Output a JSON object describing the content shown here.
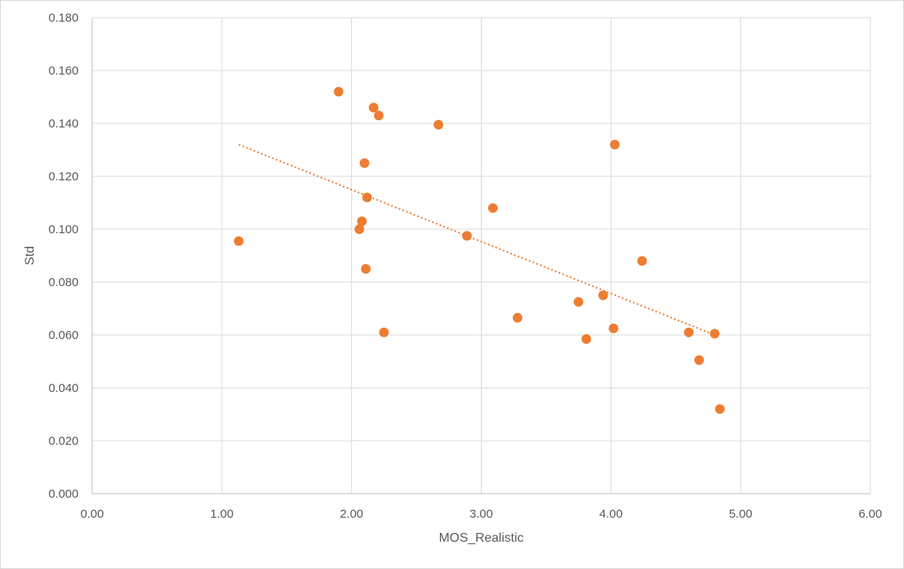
{
  "chart_data": {
    "type": "scatter",
    "xlabel": "MOS_Realistic",
    "ylabel": "Std",
    "xlim": [
      0,
      6
    ],
    "ylim": [
      0,
      0.18
    ],
    "x_ticks": [
      "0.00",
      "1.00",
      "2.00",
      "3.00",
      "4.00",
      "5.00",
      "6.00"
    ],
    "y_ticks": [
      "0.000",
      "0.020",
      "0.040",
      "0.060",
      "0.080",
      "0.100",
      "0.120",
      "0.140",
      "0.160",
      "0.180"
    ],
    "grid": true,
    "marker_color": "#ED7D31",
    "trendline": {
      "type": "linear",
      "style": "dotted",
      "color": "#ED7D31",
      "x_start": 1.13,
      "y_start": 0.132,
      "x_end": 4.8,
      "y_end": 0.06
    },
    "points": [
      {
        "x": 1.13,
        "y": 0.0955
      },
      {
        "x": 1.9,
        "y": 0.152
      },
      {
        "x": 2.06,
        "y": 0.1
      },
      {
        "x": 2.08,
        "y": 0.103
      },
      {
        "x": 2.1,
        "y": 0.125
      },
      {
        "x": 2.11,
        "y": 0.085
      },
      {
        "x": 2.12,
        "y": 0.112
      },
      {
        "x": 2.17,
        "y": 0.146
      },
      {
        "x": 2.21,
        "y": 0.143
      },
      {
        "x": 2.25,
        "y": 0.061
      },
      {
        "x": 2.67,
        "y": 0.1395
      },
      {
        "x": 2.89,
        "y": 0.0975
      },
      {
        "x": 3.09,
        "y": 0.108
      },
      {
        "x": 3.28,
        "y": 0.0665
      },
      {
        "x": 3.75,
        "y": 0.0725
      },
      {
        "x": 3.81,
        "y": 0.0585
      },
      {
        "x": 3.94,
        "y": 0.075
      },
      {
        "x": 4.02,
        "y": 0.0625
      },
      {
        "x": 4.03,
        "y": 0.132
      },
      {
        "x": 4.24,
        "y": 0.088
      },
      {
        "x": 4.6,
        "y": 0.061
      },
      {
        "x": 4.68,
        "y": 0.0505
      },
      {
        "x": 4.8,
        "y": 0.0605
      },
      {
        "x": 4.84,
        "y": 0.032
      }
    ]
  }
}
